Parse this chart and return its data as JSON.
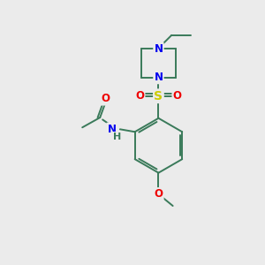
{
  "bg_color": "#ebebeb",
  "bond_color": "#3a7a5a",
  "bond_width": 1.4,
  "atom_colors": {
    "N": "#0000ee",
    "O": "#ee0000",
    "S": "#cccc00",
    "C": "#3a7a5a",
    "H": "#3a7a5a"
  },
  "font_size_atom": 8.5
}
